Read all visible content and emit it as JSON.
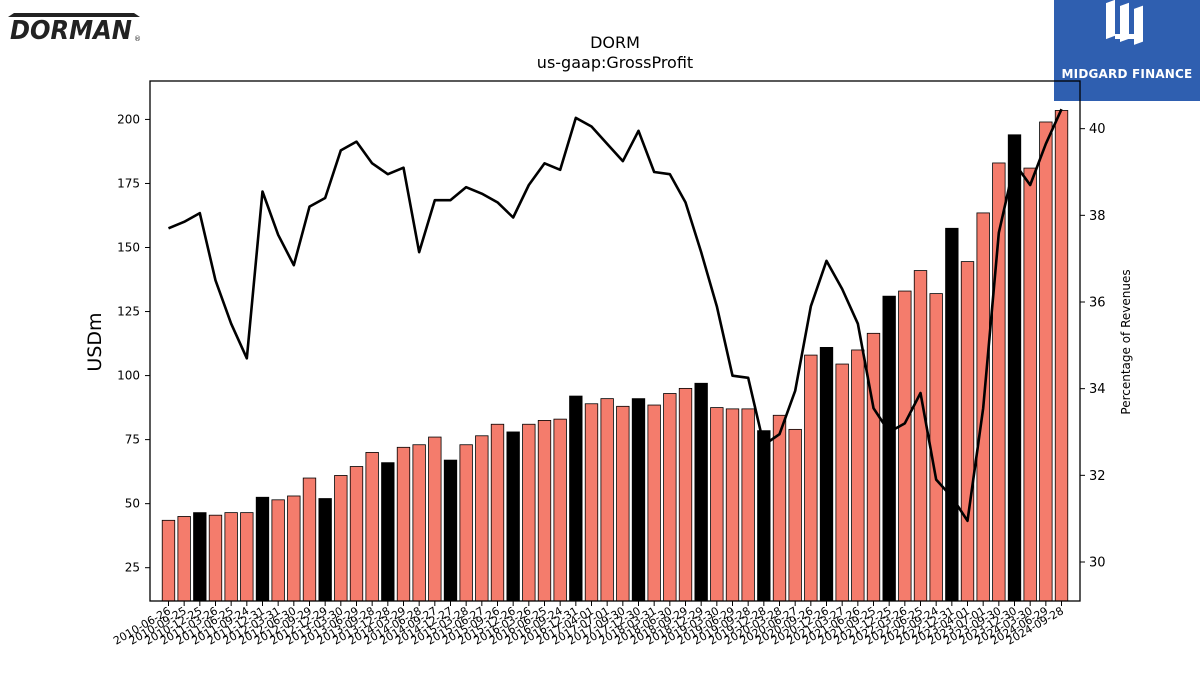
{
  "branding": {
    "left_logo_text": "DORMAN",
    "right_logo_text": "MIDGARD FINANCE",
    "right_logo_color": "#2f5fb0"
  },
  "chart_data": {
    "type": "bar",
    "title": "DORM",
    "subtitle": "us-gaap:GrossProfit",
    "ylabel": "USDm",
    "y2label": "Percentage of Revenues",
    "ylim": [
      12,
      215
    ],
    "y2lim": [
      29.1,
      41.1
    ],
    "yticks": [
      25,
      50,
      75,
      100,
      125,
      150,
      175,
      200
    ],
    "y2ticks": [
      30,
      32,
      34,
      36,
      38,
      40
    ],
    "grid": false,
    "x_tick_labels": [
      "2010-06-26",
      "2010-09-25",
      "2010-12-25",
      "2011-03-26",
      "2011-06-25",
      "2011-09-24",
      "2011-12-31",
      "2012-03-31",
      "2012-06-30",
      "2012-09-29",
      "2012-12-29",
      "2013-03-30",
      "2013-06-29",
      "2013-09-28",
      "2013-12-28",
      "2014-03-29",
      "2014-06-28",
      "2014-09-27",
      "2014-12-27",
      "2015-03-28",
      "2015-06-27",
      "2015-09-26",
      "2015-12-26",
      "2016-03-26",
      "2016-06-25",
      "2016-09-24",
      "2016-12-31",
      "2017-04-01",
      "2017-07-01",
      "2017-09-30",
      "2017-12-30",
      "2018-03-31",
      "2018-06-30",
      "2018-09-29",
      "2018-12-29",
      "2019-03-30",
      "2019-06-29",
      "2019-09-28",
      "2019-12-28",
      "2020-03-28",
      "2020-06-27",
      "2020-09-26",
      "2020-12-26",
      "2021-03-27",
      "2021-06-26",
      "2021-09-25",
      "2021-12-25",
      "2022-03-26",
      "2022-06-25",
      "2022-09-24",
      "2022-12-31",
      "2023-04-01",
      "2023-07-01",
      "2023-09-30",
      "2023-12-30",
      "2024-03-30",
      "2024-06-29",
      "2024-09-28"
    ],
    "series": [
      {
        "kind": "bar",
        "axis": "left",
        "values": [
          43.5,
          45,
          46.5,
          45.5,
          46.5,
          46.5,
          52.5,
          51.5,
          53,
          60,
          52,
          61,
          64.5,
          70,
          66,
          72,
          73,
          76,
          67,
          73,
          76.5,
          81,
          78,
          81,
          82.5,
          83,
          92,
          89,
          91,
          88,
          91,
          88.5,
          93,
          95,
          97,
          87.5,
          87,
          87,
          78.5,
          84.5,
          79,
          108,
          111,
          104.5,
          110,
          116.5,
          131,
          133,
          141,
          132,
          157.5,
          144.5,
          163.5,
          183,
          194,
          181,
          199,
          203.5
        ],
        "colors": [
          "#f47c6c",
          "#f47c6c",
          "#000000",
          "#f47c6c",
          "#f47c6c",
          "#f47c6c",
          "#000000",
          "#f47c6c",
          "#f47c6c",
          "#f47c6c",
          "#000000",
          "#f47c6c",
          "#f47c6c",
          "#f47c6c",
          "#000000",
          "#f47c6c",
          "#f47c6c",
          "#f47c6c",
          "#000000",
          "#f47c6c",
          "#f47c6c",
          "#f47c6c",
          "#000000",
          "#f47c6c",
          "#f47c6c",
          "#f47c6c",
          "#000000",
          "#f47c6c",
          "#f47c6c",
          "#f47c6c",
          "#000000",
          "#f47c6c",
          "#f47c6c",
          "#f47c6c",
          "#000000",
          "#f47c6c",
          "#f47c6c",
          "#f47c6c",
          "#000000",
          "#f47c6c",
          "#f47c6c",
          "#f47c6c",
          "#000000",
          "#f47c6c",
          "#f47c6c",
          "#f47c6c",
          "#000000",
          "#f47c6c",
          "#f47c6c",
          "#f47c6c",
          "#000000",
          "#f47c6c",
          "#f47c6c",
          "#f47c6c",
          "#000000",
          "#f47c6c",
          "#f47c6c",
          "#f47c6c"
        ]
      },
      {
        "kind": "line",
        "axis": "right",
        "color": "#000000",
        "values": [
          37.7,
          37.85,
          38.05,
          36.5,
          35.5,
          34.7,
          38.55,
          37.55,
          36.85,
          38.2,
          38.4,
          39.5,
          39.7,
          39.2,
          38.95,
          39.1,
          37.15,
          38.35,
          38.35,
          38.65,
          38.5,
          38.3,
          37.95,
          38.7,
          39.2,
          39.05,
          40.25,
          40.05,
          39.65,
          39.25,
          39.95,
          39.0,
          38.95,
          38.3,
          37.15,
          35.9,
          34.3,
          34.25,
          32.7,
          32.95,
          33.95,
          35.9,
          36.95,
          36.3,
          35.5,
          33.55,
          33.0,
          33.2,
          33.9,
          31.9,
          31.5,
          30.95,
          33.55,
          37.6,
          39.2,
          38.7,
          39.65,
          40.45
        ]
      }
    ],
    "colors": {
      "bar": "#f47c6c",
      "bar_highlight": "#000000",
      "line": "#000000"
    }
  }
}
